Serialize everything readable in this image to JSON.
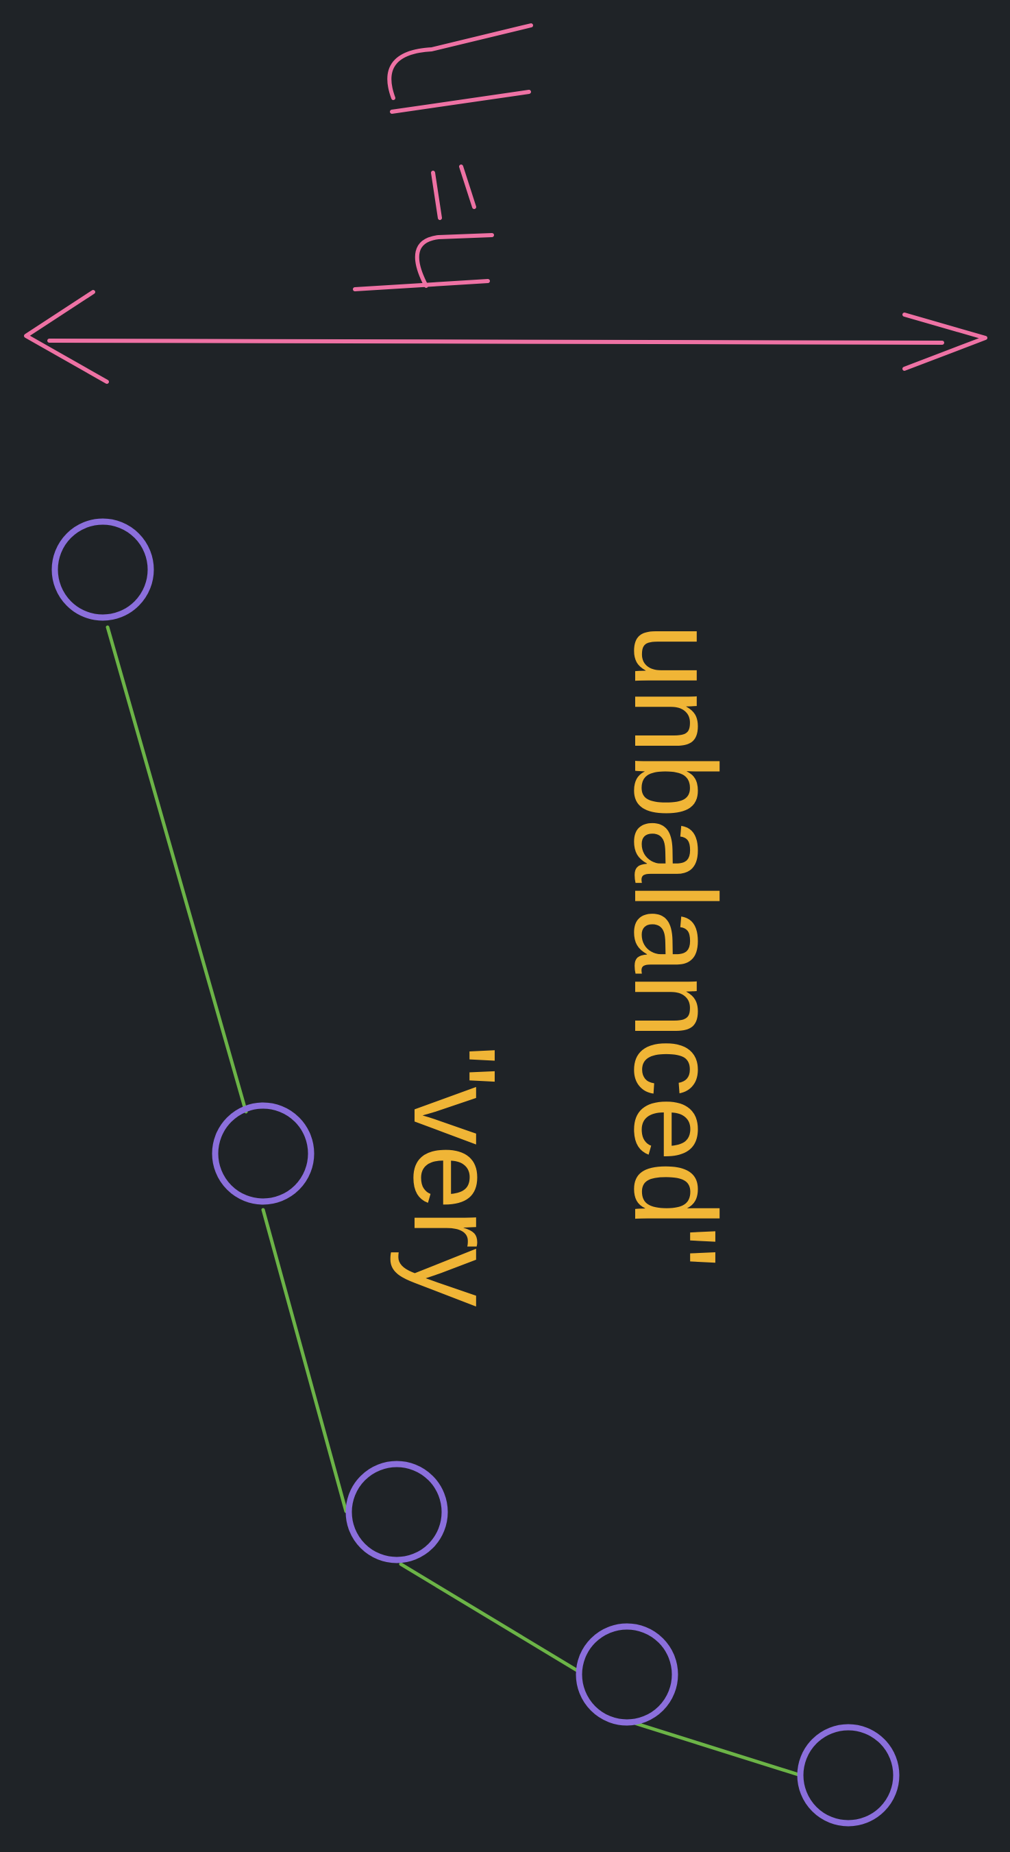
{
  "colors": {
    "background": "#1f2327",
    "node_stroke": "#8b6fdc",
    "edge_stroke": "#6cb447",
    "annotation_stroke": "#ee72a4",
    "caption_text": "#f0b536"
  },
  "annotation": {
    "handwritten_text": "h = n",
    "arrow": "double-headed-arrow"
  },
  "caption": {
    "line1": "\"very",
    "line2": "unbalanced\""
  },
  "diagram": {
    "type": "chain-of-nodes",
    "node_count": 5,
    "edge_count": 4
  }
}
